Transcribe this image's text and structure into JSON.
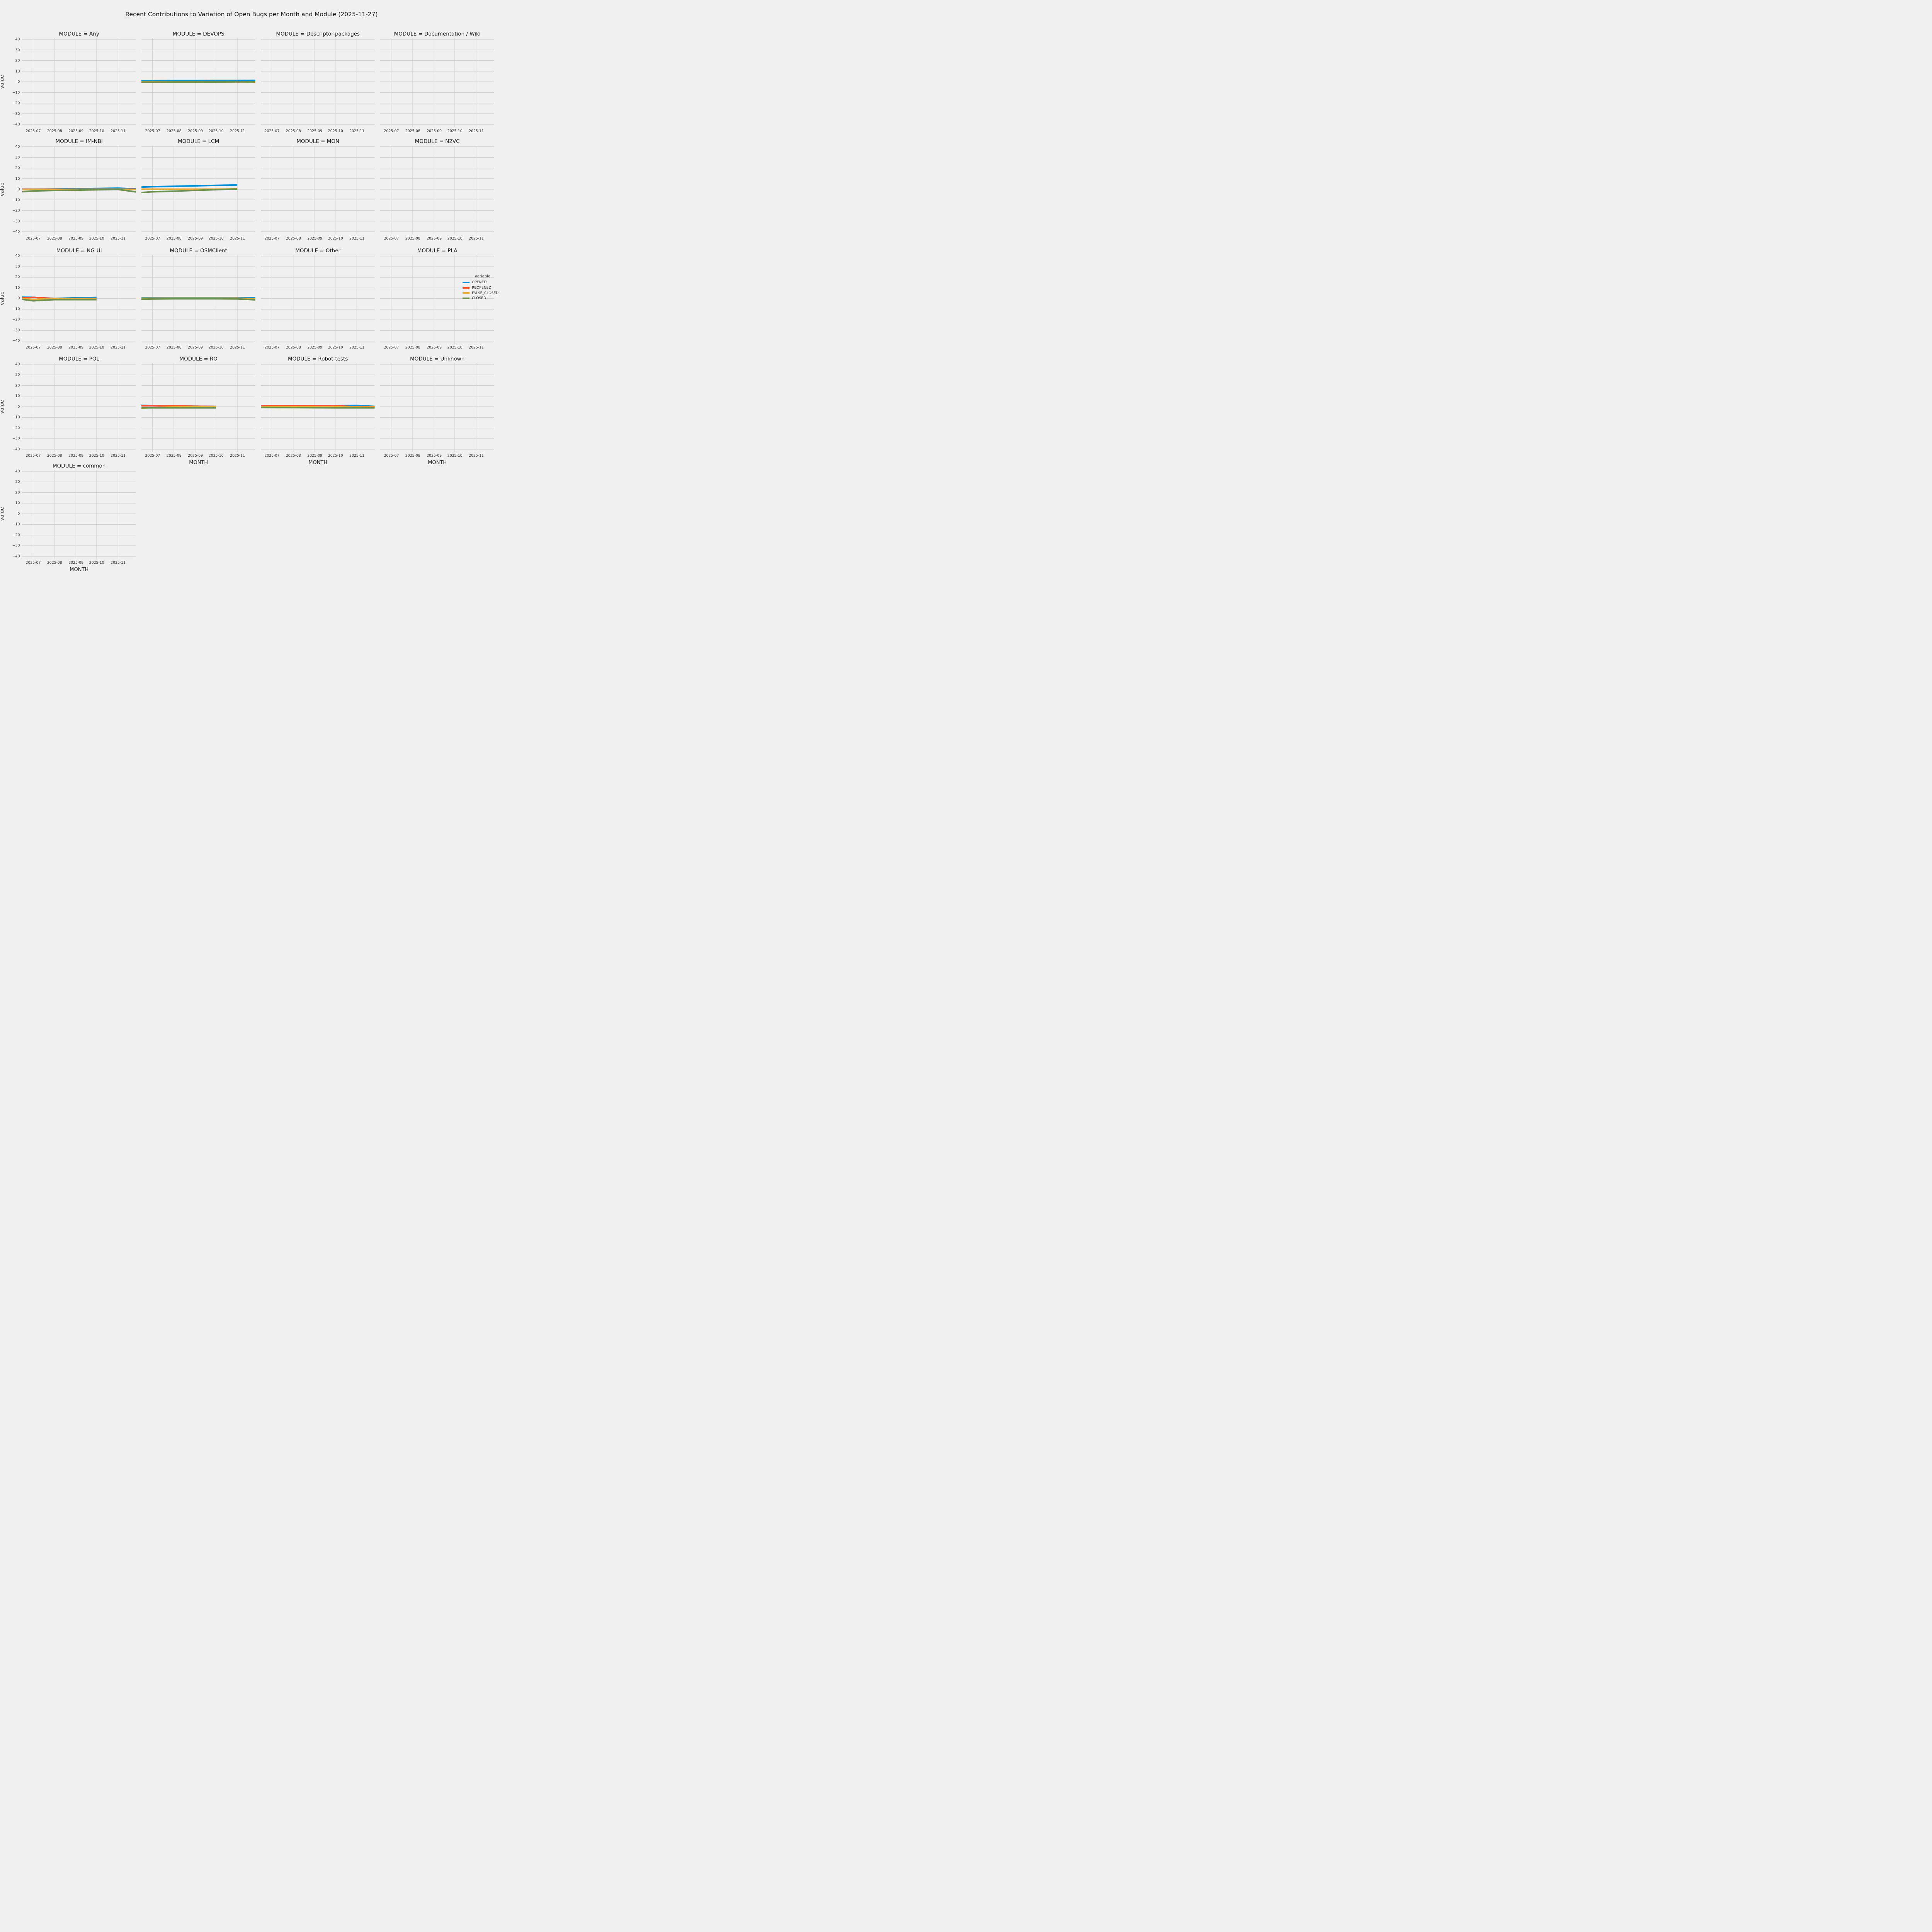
{
  "figure": {
    "title": "Recent Contributions to Variation of Open Bugs per Month and Module (2025-11-27)",
    "background": "#f0f0f0",
    "grid_color": "#cbcbcb",
    "text_color": "#262626"
  },
  "legend": {
    "title": "variable",
    "entries": [
      {
        "label": "OPENED",
        "color": "#008fd5"
      },
      {
        "label": "REOPENED",
        "color": "#fc4f30"
      },
      {
        "label": "FALSE_CLOSED",
        "color": "#e5ae38"
      },
      {
        "label": "CLOSED",
        "color": "#6d904f"
      }
    ]
  },
  "chart_data": {
    "type": "line",
    "facet_by": "MODULE",
    "title": "Recent Contributions to Variation of Open Bugs per Month and Module (2025-11-27)",
    "xlabel": "MONTH",
    "ylabel": "value",
    "ylim": [
      -41,
      41
    ],
    "yticks": [
      40,
      30,
      20,
      10,
      0,
      -10,
      -20,
      -30,
      -40
    ],
    "grid": true,
    "legend_position": "right-outside",
    "x_axis": {
      "start": "2025-06-15",
      "end": "2025-11-27",
      "tick_dates": [
        "2025-07-01",
        "2025-08-01",
        "2025-09-01",
        "2025-10-01",
        "2025-11-01"
      ],
      "tick_labels": [
        "2025-07",
        "2025-08",
        "2025-09",
        "2025-10",
        "2025-11"
      ]
    },
    "series_names": [
      "OPENED",
      "REOPENED",
      "FALSE_CLOSED",
      "CLOSED"
    ],
    "modules": [
      {
        "module": "Any",
        "title": "MODULE = Any",
        "series": []
      },
      {
        "module": "DEVOPS",
        "title": "MODULE = DEVOPS",
        "series": [
          {
            "name": "OPENED",
            "dates": [
              "2025-06-15",
              "2025-07-01",
              "2025-08-01",
              "2025-09-01",
              "2025-10-01",
              "2025-11-01",
              "2025-11-27"
            ],
            "values": [
              1.1,
              1.1,
              1.2,
              1.2,
              1.3,
              1.3,
              1.4
            ]
          },
          {
            "name": "REOPENED",
            "dates": [
              "2025-06-15",
              "2025-07-01",
              "2025-08-01",
              "2025-09-01",
              "2025-10-01",
              "2025-11-01",
              "2025-11-27"
            ],
            "values": [
              0,
              0,
              0,
              0,
              0,
              0,
              0
            ]
          },
          {
            "name": "FALSE_CLOSED",
            "dates": [
              "2025-06-15",
              "2025-07-01",
              "2025-08-01",
              "2025-09-01",
              "2025-10-01",
              "2025-11-01",
              "2025-11-27"
            ],
            "values": [
              0.3,
              0.3,
              0.3,
              0.3,
              0.3,
              0.3,
              -0.6
            ]
          },
          {
            "name": "CLOSED",
            "dates": [
              "2025-06-15",
              "2025-07-01",
              "2025-08-01",
              "2025-09-01",
              "2025-10-01",
              "2025-11-01",
              "2025-11-27"
            ],
            "values": [
              -0.3,
              -0.3,
              -0.2,
              -0.2,
              -0.1,
              0,
              0
            ]
          }
        ]
      },
      {
        "module": "Descriptor-packages",
        "title": "MODULE = Descriptor-packages",
        "series": []
      },
      {
        "module": "Documentation / Wiki",
        "title": "MODULE = Documentation / Wiki",
        "series": []
      },
      {
        "module": "IM-NBI",
        "title": "MODULE = IM-NBI",
        "series": [
          {
            "name": "OPENED",
            "dates": [
              "2025-06-15",
              "2025-07-01",
              "2025-08-01",
              "2025-09-01",
              "2025-10-01",
              "2025-11-01",
              "2025-11-27"
            ],
            "values": [
              0,
              0,
              0.2,
              0.4,
              0.7,
              1,
              0.3
            ]
          },
          {
            "name": "REOPENED",
            "dates": [
              "2025-06-15",
              "2025-07-01",
              "2025-08-01",
              "2025-09-01",
              "2025-10-01",
              "2025-11-01",
              "2025-11-27"
            ],
            "values": [
              0,
              0,
              0,
              0,
              0,
              0,
              0
            ]
          },
          {
            "name": "FALSE_CLOSED",
            "dates": [
              "2025-06-15",
              "2025-07-01",
              "2025-08-01",
              "2025-09-01",
              "2025-10-01",
              "2025-11-01",
              "2025-11-27"
            ],
            "values": [
              -0.3,
              -0.2,
              -0.2,
              -0.1,
              -0.1,
              0,
              -0.3
            ]
          },
          {
            "name": "CLOSED",
            "dates": [
              "2025-06-15",
              "2025-07-01",
              "2025-08-01",
              "2025-09-01",
              "2025-10-01",
              "2025-11-01",
              "2025-11-27"
            ],
            "values": [
              -2.3,
              -1.6,
              -1.2,
              -0.9,
              -0.5,
              -0.2,
              -2.5
            ]
          }
        ]
      },
      {
        "module": "LCM",
        "title": "MODULE = LCM",
        "series": [
          {
            "name": "OPENED",
            "dates": [
              "2025-06-15",
              "2025-07-01",
              "2025-08-01",
              "2025-09-01",
              "2025-10-01",
              "2025-11-01"
            ],
            "values": [
              2,
              2.4,
              2.8,
              3.2,
              3.6,
              4
            ]
          },
          {
            "name": "REOPENED",
            "dates": [
              "2025-06-15",
              "2025-07-01",
              "2025-08-01",
              "2025-09-01",
              "2025-10-01",
              "2025-11-01"
            ],
            "values": [
              0,
              0,
              0,
              0,
              0,
              0
            ]
          },
          {
            "name": "FALSE_CLOSED",
            "dates": [
              "2025-06-15",
              "2025-07-01",
              "2025-08-01",
              "2025-09-01",
              "2025-10-01",
              "2025-11-01"
            ],
            "values": [
              0,
              0,
              0,
              0,
              0,
              0.3
            ]
          },
          {
            "name": "CLOSED",
            "dates": [
              "2025-06-15",
              "2025-07-01",
              "2025-08-01",
              "2025-09-01",
              "2025-10-01",
              "2025-11-01"
            ],
            "values": [
              -3.1,
              -2.4,
              -1.8,
              -1.1,
              -0.4,
              0.2
            ]
          }
        ]
      },
      {
        "module": "MON",
        "title": "MODULE = MON",
        "series": []
      },
      {
        "module": "N2VC",
        "title": "MODULE = N2VC",
        "series": []
      },
      {
        "module": "NG-UI",
        "title": "MODULE = NG-UI",
        "series": [
          {
            "name": "OPENED",
            "dates": [
              "2025-06-15",
              "2025-07-01",
              "2025-08-01",
              "2025-09-01",
              "2025-10-01"
            ],
            "values": [
              1.3,
              1.2,
              0.1,
              0.7,
              1.1
            ]
          },
          {
            "name": "REOPENED",
            "dates": [
              "2025-06-15",
              "2025-07-01",
              "2025-08-01",
              "2025-09-01",
              "2025-10-01"
            ],
            "values": [
              0.5,
              1.2,
              0,
              0,
              0
            ]
          },
          {
            "name": "FALSE_CLOSED",
            "dates": [
              "2025-06-15",
              "2025-07-01",
              "2025-08-01",
              "2025-09-01",
              "2025-10-01"
            ],
            "values": [
              0,
              -0.8,
              0,
              0,
              0
            ]
          },
          {
            "name": "CLOSED",
            "dates": [
              "2025-06-15",
              "2025-07-01",
              "2025-08-01",
              "2025-09-01",
              "2025-10-01"
            ],
            "values": [
              -0.7,
              -2.1,
              -1,
              -1,
              -1
            ]
          }
        ]
      },
      {
        "module": "OSMClient",
        "title": "MODULE = OSMClient",
        "series": [
          {
            "name": "OPENED",
            "dates": [
              "2025-06-15",
              "2025-07-01",
              "2025-08-01",
              "2025-09-01",
              "2025-10-01",
              "2025-11-01",
              "2025-11-27"
            ],
            "values": [
              0.8,
              0.9,
              1,
              1,
              1,
              1,
              1
            ]
          },
          {
            "name": "REOPENED",
            "dates": [
              "2025-06-15",
              "2025-07-01",
              "2025-08-01",
              "2025-09-01",
              "2025-10-01",
              "2025-11-01",
              "2025-11-27"
            ],
            "values": [
              0,
              0,
              0,
              0,
              0,
              0,
              0
            ]
          },
          {
            "name": "FALSE_CLOSED",
            "dates": [
              "2025-06-15",
              "2025-07-01",
              "2025-08-01",
              "2025-09-01",
              "2025-10-01",
              "2025-11-01",
              "2025-11-27"
            ],
            "values": [
              0.3,
              0.3,
              0.4,
              0.4,
              0.4,
              0.4,
              -0.3
            ]
          },
          {
            "name": "CLOSED",
            "dates": [
              "2025-06-15",
              "2025-07-01",
              "2025-08-01",
              "2025-09-01",
              "2025-10-01",
              "2025-11-01",
              "2025-11-27"
            ],
            "values": [
              -0.6,
              -0.4,
              -0.2,
              -0.2,
              -0.2,
              -0.3,
              -1.2
            ]
          }
        ]
      },
      {
        "module": "Other",
        "title": "MODULE = Other",
        "series": []
      },
      {
        "module": "PLA",
        "title": "MODULE = PLA",
        "series": []
      },
      {
        "module": "POL",
        "title": "MODULE = POL",
        "series": []
      },
      {
        "module": "RO",
        "title": "MODULE = RO",
        "series": [
          {
            "name": "OPENED",
            "dates": [
              "2025-06-15",
              "2025-07-01",
              "2025-08-01",
              "2025-09-01",
              "2025-10-01"
            ],
            "values": [
              1.3,
              1,
              0.8,
              0.5,
              0.3
            ]
          },
          {
            "name": "REOPENED",
            "dates": [
              "2025-06-15",
              "2025-07-01",
              "2025-08-01",
              "2025-09-01",
              "2025-10-01"
            ],
            "values": [
              1,
              1,
              0.8,
              0.5,
              0.3
            ]
          },
          {
            "name": "FALSE_CLOSED",
            "dates": [
              "2025-06-15",
              "2025-07-01",
              "2025-08-01",
              "2025-09-01",
              "2025-10-01"
            ],
            "values": [
              -1.3,
              -0.8,
              -0.2,
              0,
              -0.1
            ]
          },
          {
            "name": "CLOSED",
            "dates": [
              "2025-06-15",
              "2025-07-01",
              "2025-08-01",
              "2025-09-01",
              "2025-10-01"
            ],
            "values": [
              -1,
              -1,
              -1,
              -1,
              -1
            ]
          }
        ]
      },
      {
        "module": "Robot-tests",
        "title": "MODULE = Robot-tests",
        "series": [
          {
            "name": "OPENED",
            "dates": [
              "2025-06-15",
              "2025-07-01",
              "2025-08-01",
              "2025-09-01",
              "2025-10-01",
              "2025-11-01",
              "2025-11-27"
            ],
            "values": [
              1,
              1,
              1,
              1,
              1,
              1.2,
              0.4
            ]
          },
          {
            "name": "REOPENED",
            "dates": [
              "2025-06-15",
              "2025-07-01",
              "2025-08-01",
              "2025-09-01",
              "2025-10-01",
              "2025-11-01",
              "2025-11-27"
            ],
            "values": [
              1,
              1,
              1,
              1,
              1,
              0,
              -0.1
            ]
          },
          {
            "name": "FALSE_CLOSED",
            "dates": [
              "2025-06-15",
              "2025-07-01",
              "2025-08-01",
              "2025-09-01",
              "2025-10-01",
              "2025-11-01",
              "2025-11-27"
            ],
            "values": [
              0,
              0,
              0,
              0,
              0,
              -0.3,
              -0.3
            ]
          },
          {
            "name": "CLOSED",
            "dates": [
              "2025-06-15",
              "2025-07-01",
              "2025-08-01",
              "2025-09-01",
              "2025-10-01",
              "2025-11-01",
              "2025-11-27"
            ],
            "values": [
              -0.6,
              -0.7,
              -0.8,
              -0.9,
              -1,
              -1,
              -1
            ]
          }
        ]
      },
      {
        "module": "Unknown",
        "title": "MODULE = Unknown",
        "series": []
      },
      {
        "module": "common",
        "title": "MODULE = common",
        "series": []
      }
    ]
  }
}
